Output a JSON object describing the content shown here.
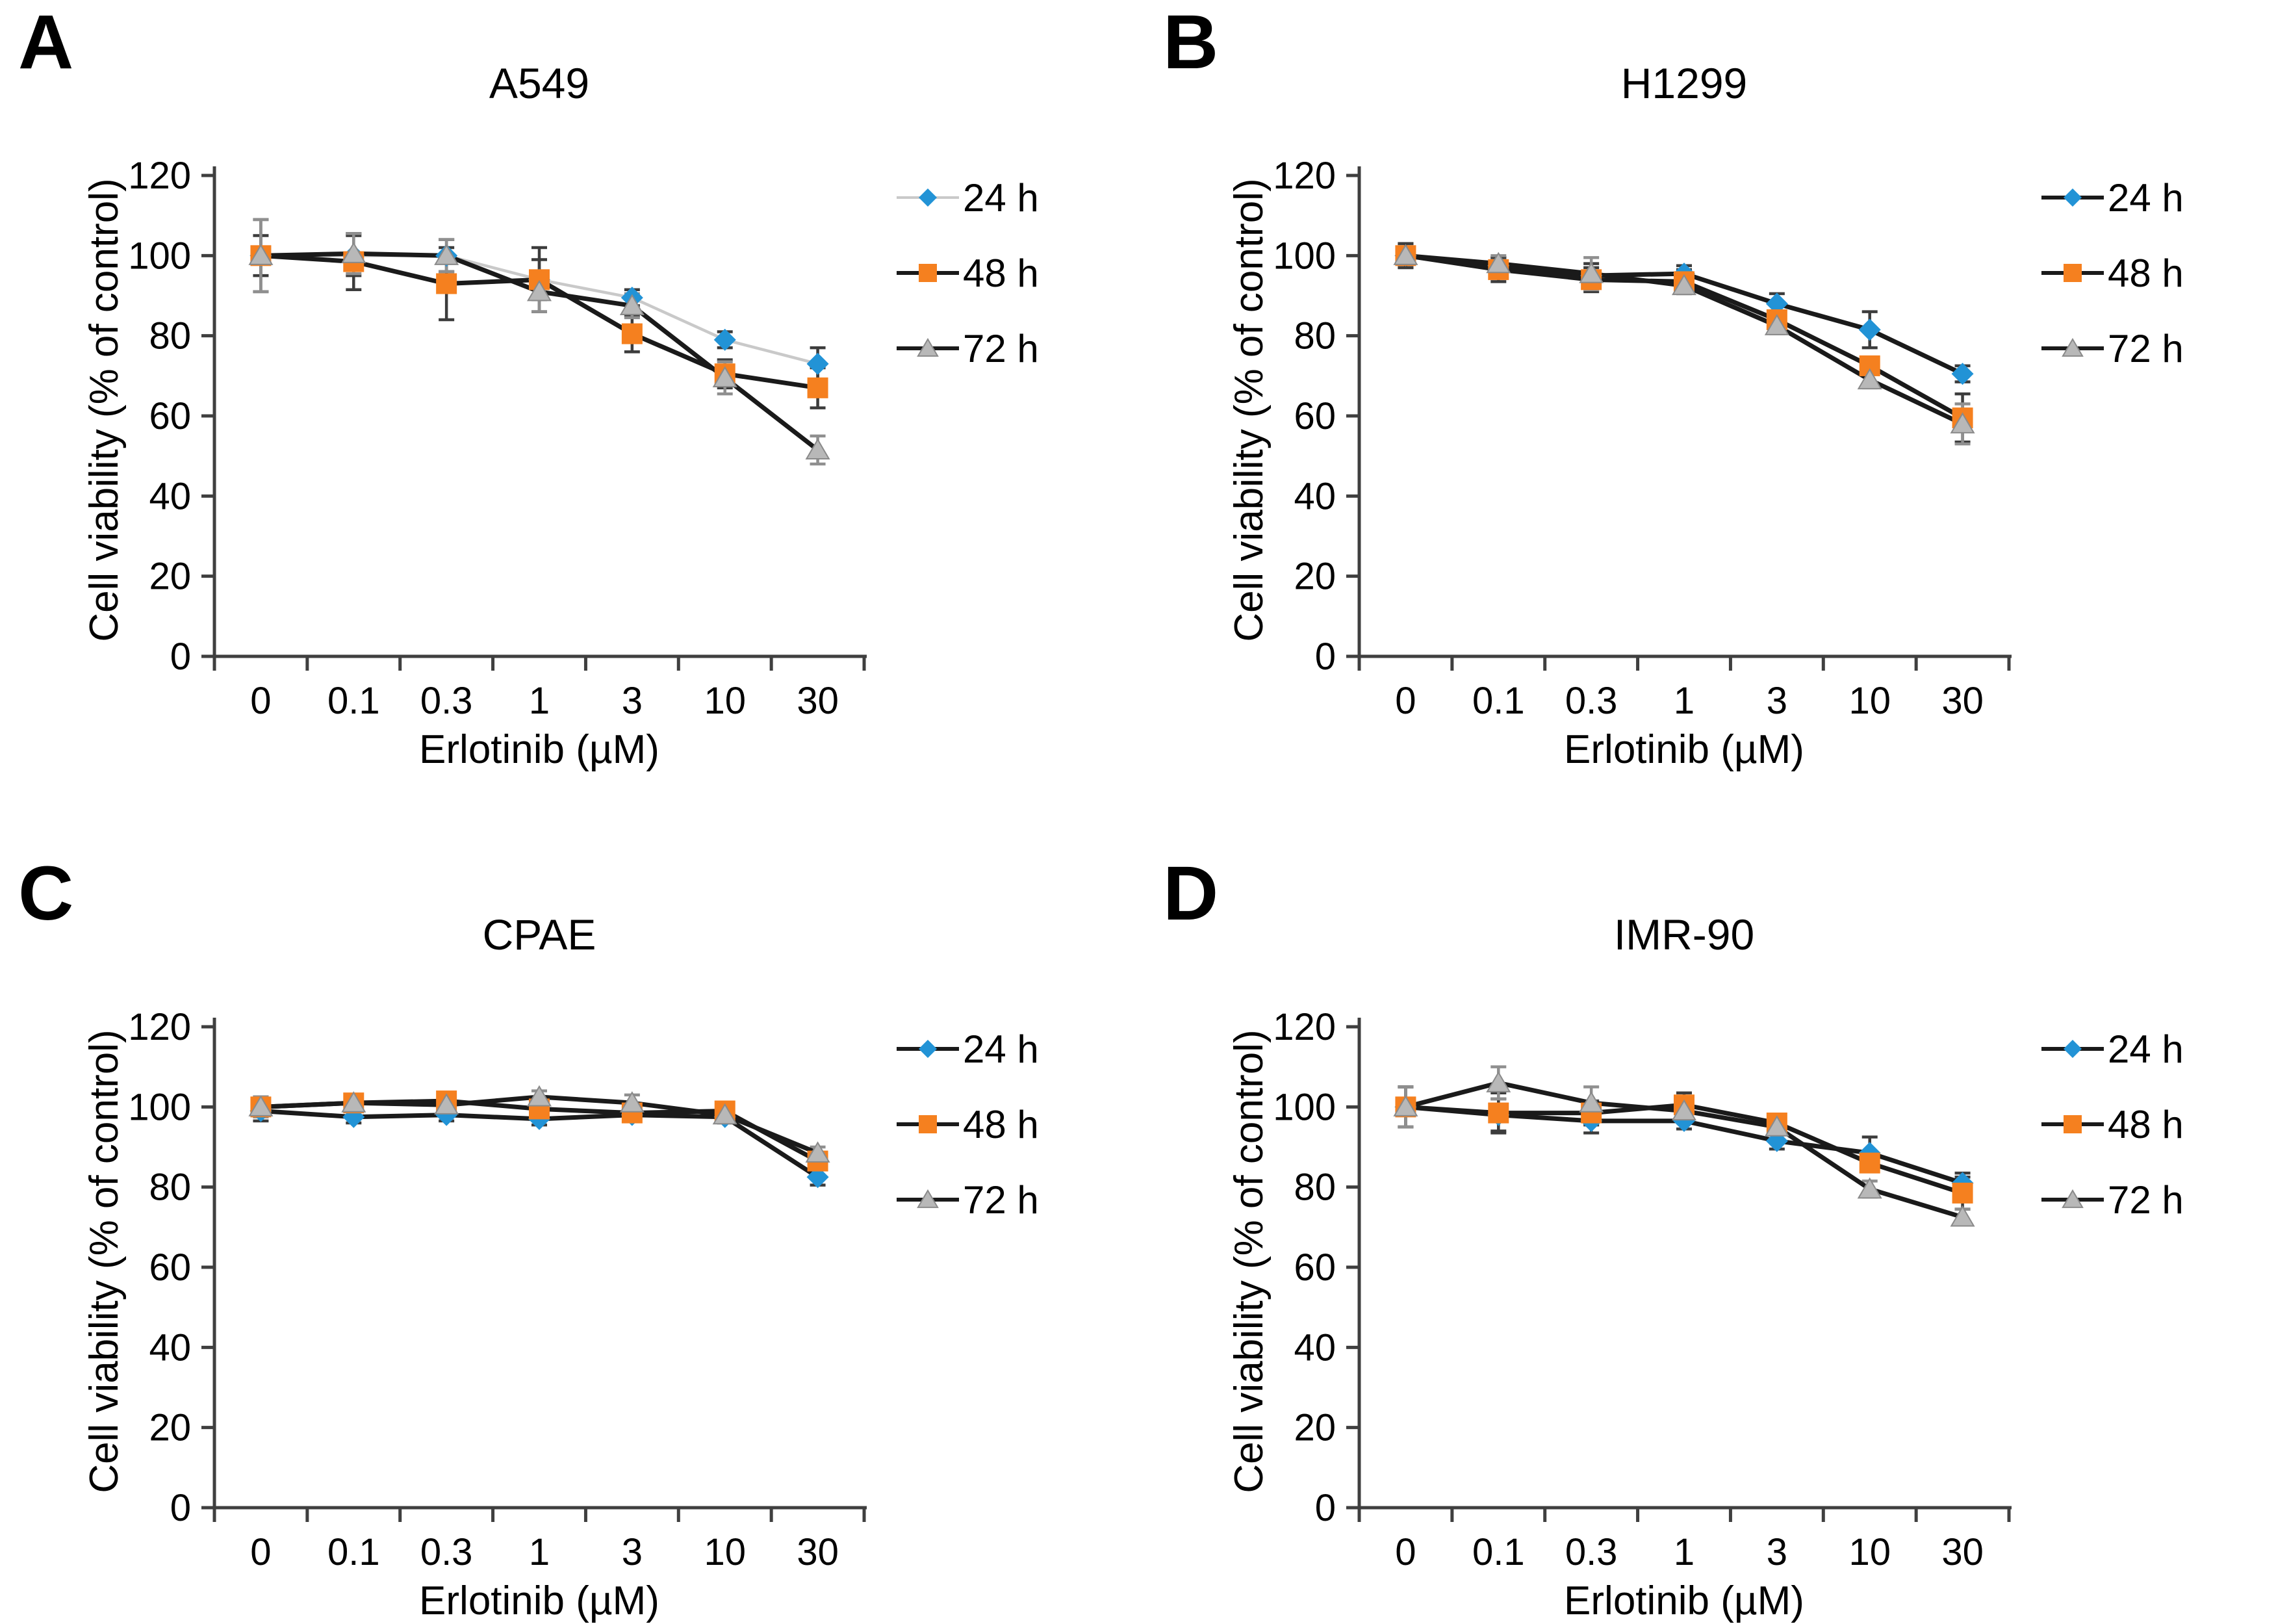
{
  "figure": {
    "xlabel": "Erlotinib (µM)",
    "ylabel": "Cell viability (% of control)",
    "legend_labels": [
      "24 h",
      "48 h",
      "72 h"
    ],
    "colors": {
      "series_24h_marker": "#2293d6",
      "series_48h_marker": "#f5801f",
      "series_72h_marker": "#b8b8b8",
      "line_black": "#1a1a1a",
      "line_light_gray": "#c9c9c9",
      "error_bar_dark": "#3c3c3c",
      "error_bar_gray": "#8f8f8f",
      "axis": "#3f3f3f"
    }
  },
  "chart_data": [
    {
      "type": "line",
      "panel": "A",
      "title": "A549",
      "xlabel": "Erlotinib (µM)",
      "ylabel": "Cell viability (% of control)",
      "categories": [
        "0",
        "0.1",
        "0.3",
        "1",
        "3",
        "10",
        "30"
      ],
      "ylim": [
        0,
        120
      ],
      "yticks": [
        0,
        20,
        40,
        60,
        80,
        100,
        120
      ],
      "grid": false,
      "legend_position": "right",
      "series": [
        {
          "name": "24 h",
          "marker": "diamond",
          "color": "#2293d6",
          "line_color": "#c9c9c9",
          "line_width": 4.5,
          "err_color": "#3c3c3c",
          "values": [
            100,
            100,
            100,
            94,
            89.5,
            79,
            73
          ],
          "errors": [
            9,
            5,
            4,
            5,
            2,
            2,
            4
          ]
        },
        {
          "name": "48 h",
          "marker": "square",
          "color": "#f5801f",
          "line_color": "#1a1a1a",
          "line_width": 7,
          "err_color": "#3c3c3c",
          "values": [
            100,
            98.5,
            93,
            94,
            80.5,
            70.5,
            67
          ],
          "errors": [
            5,
            7,
            9,
            8,
            4.5,
            3.5,
            5
          ]
        },
        {
          "name": "72 h",
          "marker": "triangle",
          "color": "#b8b8b8",
          "line_color": "#1a1a1a",
          "line_width": 7,
          "err_color": "#8f8f8f",
          "values": [
            100,
            100.5,
            100,
            91,
            87.5,
            69.5,
            51.5
          ],
          "errors": [
            9,
            5,
            4,
            5,
            3,
            4,
            3.5
          ]
        }
      ]
    },
    {
      "type": "line",
      "panel": "B",
      "title": "H1299",
      "xlabel": "Erlotinib (µM)",
      "ylabel": "Cell viability (% of control)",
      "categories": [
        "0",
        "0.1",
        "0.3",
        "1",
        "3",
        "10",
        "30"
      ],
      "ylim": [
        0,
        120
      ],
      "yticks": [
        0,
        20,
        40,
        60,
        80,
        100,
        120
      ],
      "grid": false,
      "legend_position": "right",
      "series": [
        {
          "name": "24 h",
          "marker": "diamond",
          "color": "#2293d6",
          "line_color": "#1a1a1a",
          "line_width": 7,
          "err_color": "#3c3c3c",
          "values": [
            100,
            97.5,
            95,
            95.5,
            88,
            81.5,
            70.5
          ],
          "errors": [
            3,
            2,
            3,
            2,
            2.5,
            4.5,
            2
          ]
        },
        {
          "name": "48 h",
          "marker": "square",
          "color": "#f5801f",
          "line_color": "#1a1a1a",
          "line_width": 7,
          "err_color": "#3c3c3c",
          "values": [
            100,
            96.5,
            94,
            93.5,
            84,
            72.5,
            59.5
          ],
          "errors": [
            3,
            3,
            3,
            3,
            2,
            2,
            6
          ]
        },
        {
          "name": "72 h",
          "marker": "triangle",
          "color": "#b8b8b8",
          "line_color": "#1a1a1a",
          "line_width": 7,
          "err_color": "#8f8f8f",
          "values": [
            100,
            98,
            95.5,
            92.5,
            82.5,
            69,
            58
          ],
          "errors": [
            2,
            2,
            4,
            2,
            2,
            2,
            5
          ]
        }
      ]
    },
    {
      "type": "line",
      "panel": "C",
      "title": "CPAE",
      "xlabel": "Erlotinib (µM)",
      "ylabel": "Cell viability (% of control)",
      "categories": [
        "0",
        "0.1",
        "0.3",
        "1",
        "3",
        "10",
        "30"
      ],
      "ylim": [
        0,
        120
      ],
      "yticks": [
        0,
        20,
        40,
        60,
        80,
        100,
        120
      ],
      "grid": false,
      "legend_position": "right",
      "series": [
        {
          "name": "24 h",
          "marker": "diamond",
          "color": "#2293d6",
          "line_color": "#1a1a1a",
          "line_width": 7,
          "err_color": "#3c3c3c",
          "values": [
            99,
            97.5,
            98,
            97,
            98,
            97.5,
            82.5
          ],
          "errors": [
            2.5,
            1.5,
            1.5,
            1.5,
            1.5,
            1.5,
            2
          ]
        },
        {
          "name": "48 h",
          "marker": "square",
          "color": "#f5801f",
          "line_color": "#1a1a1a",
          "line_width": 7,
          "err_color": "#3c3c3c",
          "values": [
            100,
            101,
            101.5,
            99.5,
            98.5,
            99,
            86.5
          ],
          "errors": [
            2.5,
            1.5,
            1.5,
            2,
            1.5,
            1.5,
            2
          ]
        },
        {
          "name": "72 h",
          "marker": "triangle",
          "color": "#b8b8b8",
          "line_color": "#1a1a1a",
          "line_width": 7,
          "err_color": "#8f8f8f",
          "values": [
            100,
            101,
            100.5,
            102.5,
            101,
            98,
            88.5
          ],
          "errors": [
            2.5,
            2,
            1.5,
            1.5,
            2,
            1.5,
            1.5
          ]
        }
      ]
    },
    {
      "type": "line",
      "panel": "D",
      "title": "IMR-90",
      "xlabel": "Erlotinib (µM)",
      "ylabel": "Cell viability (% of control)",
      "categories": [
        "0",
        "0.1",
        "0.3",
        "1",
        "3",
        "10",
        "30"
      ],
      "ylim": [
        0,
        120
      ],
      "yticks": [
        0,
        20,
        40,
        60,
        80,
        100,
        120
      ],
      "grid": false,
      "legend_position": "right",
      "series": [
        {
          "name": "24 h",
          "marker": "diamond",
          "color": "#2293d6",
          "line_color": "#1a1a1a",
          "line_width": 7,
          "err_color": "#3c3c3c",
          "values": [
            100,
            98,
            96.5,
            96.5,
            91.5,
            88.5,
            81
          ],
          "errors": [
            5,
            4,
            3,
            2,
            2,
            4,
            2.5
          ]
        },
        {
          "name": "48 h",
          "marker": "square",
          "color": "#f5801f",
          "line_color": "#1a1a1a",
          "line_width": 7,
          "err_color": "#3c3c3c",
          "values": [
            100,
            98.5,
            98.5,
            100.5,
            96,
            86,
            78.5
          ],
          "errors": [
            5,
            5,
            3,
            3,
            2,
            2,
            4
          ]
        },
        {
          "name": "72 h",
          "marker": "triangle",
          "color": "#b8b8b8",
          "line_color": "#1a1a1a",
          "line_width": 7,
          "err_color": "#8f8f8f",
          "values": [
            100,
            106,
            101,
            99,
            95,
            79.5,
            72.5
          ],
          "errors": [
            5,
            4,
            4,
            3,
            2,
            2,
            2
          ]
        }
      ]
    }
  ]
}
